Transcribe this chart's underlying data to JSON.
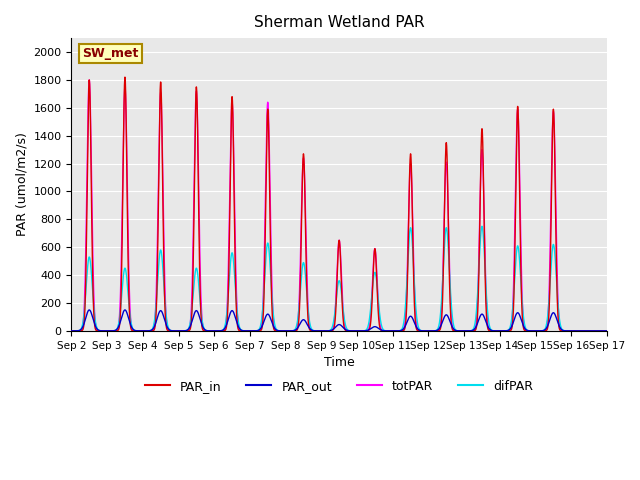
{
  "title": "Sherman Wetland PAR",
  "ylabel": "PAR (umol/m2/s)",
  "xlabel": "Time",
  "annotation": "SW_met",
  "ylim": [
    0,
    2100
  ],
  "yticks": [
    0,
    200,
    400,
    600,
    800,
    1000,
    1200,
    1400,
    1600,
    1800,
    2000
  ],
  "background_color": "#e8e8e8",
  "line_colors": {
    "PAR_in": "#dd0000",
    "PAR_out": "#0000cc",
    "totPAR": "#ff00ff",
    "difPAR": "#00ddee"
  },
  "x_tick_labels": [
    "Sep 2",
    "Sep 3",
    "Sep 4",
    "Sep 5",
    "Sep 6",
    "Sep 7",
    "Sep 8",
    "Sep 9",
    "Sep 10",
    "Sep 11",
    "Sep 12",
    "Sep 13",
    "Sep 14",
    "Sep 15",
    "Sep 16",
    "Sep 17"
  ],
  "day_peaks_PAR_in": [
    1800,
    1820,
    1785,
    1750,
    1680,
    1590,
    1270,
    650,
    590,
    1270,
    1350,
    1450,
    1610,
    1590,
    0,
    0
  ],
  "day_peaks_totPAR": [
    1800,
    1750,
    1710,
    1720,
    1640,
    1640,
    1240,
    650,
    590,
    1200,
    1210,
    1300,
    1590,
    1575,
    0,
    0
  ],
  "day_peaks_PAR_out": [
    150,
    150,
    145,
    145,
    145,
    120,
    80,
    45,
    30,
    105,
    115,
    120,
    130,
    130,
    0,
    0
  ],
  "day_peaks_difPAR": [
    530,
    450,
    580,
    450,
    560,
    630,
    490,
    360,
    420,
    740,
    740,
    750,
    610,
    620,
    0,
    0
  ],
  "sigma_PAR_in": 0.055,
  "sigma_totPAR": 0.065,
  "sigma_PAR_out": 0.1,
  "sigma_difPAR": 0.085,
  "n_days": 15
}
